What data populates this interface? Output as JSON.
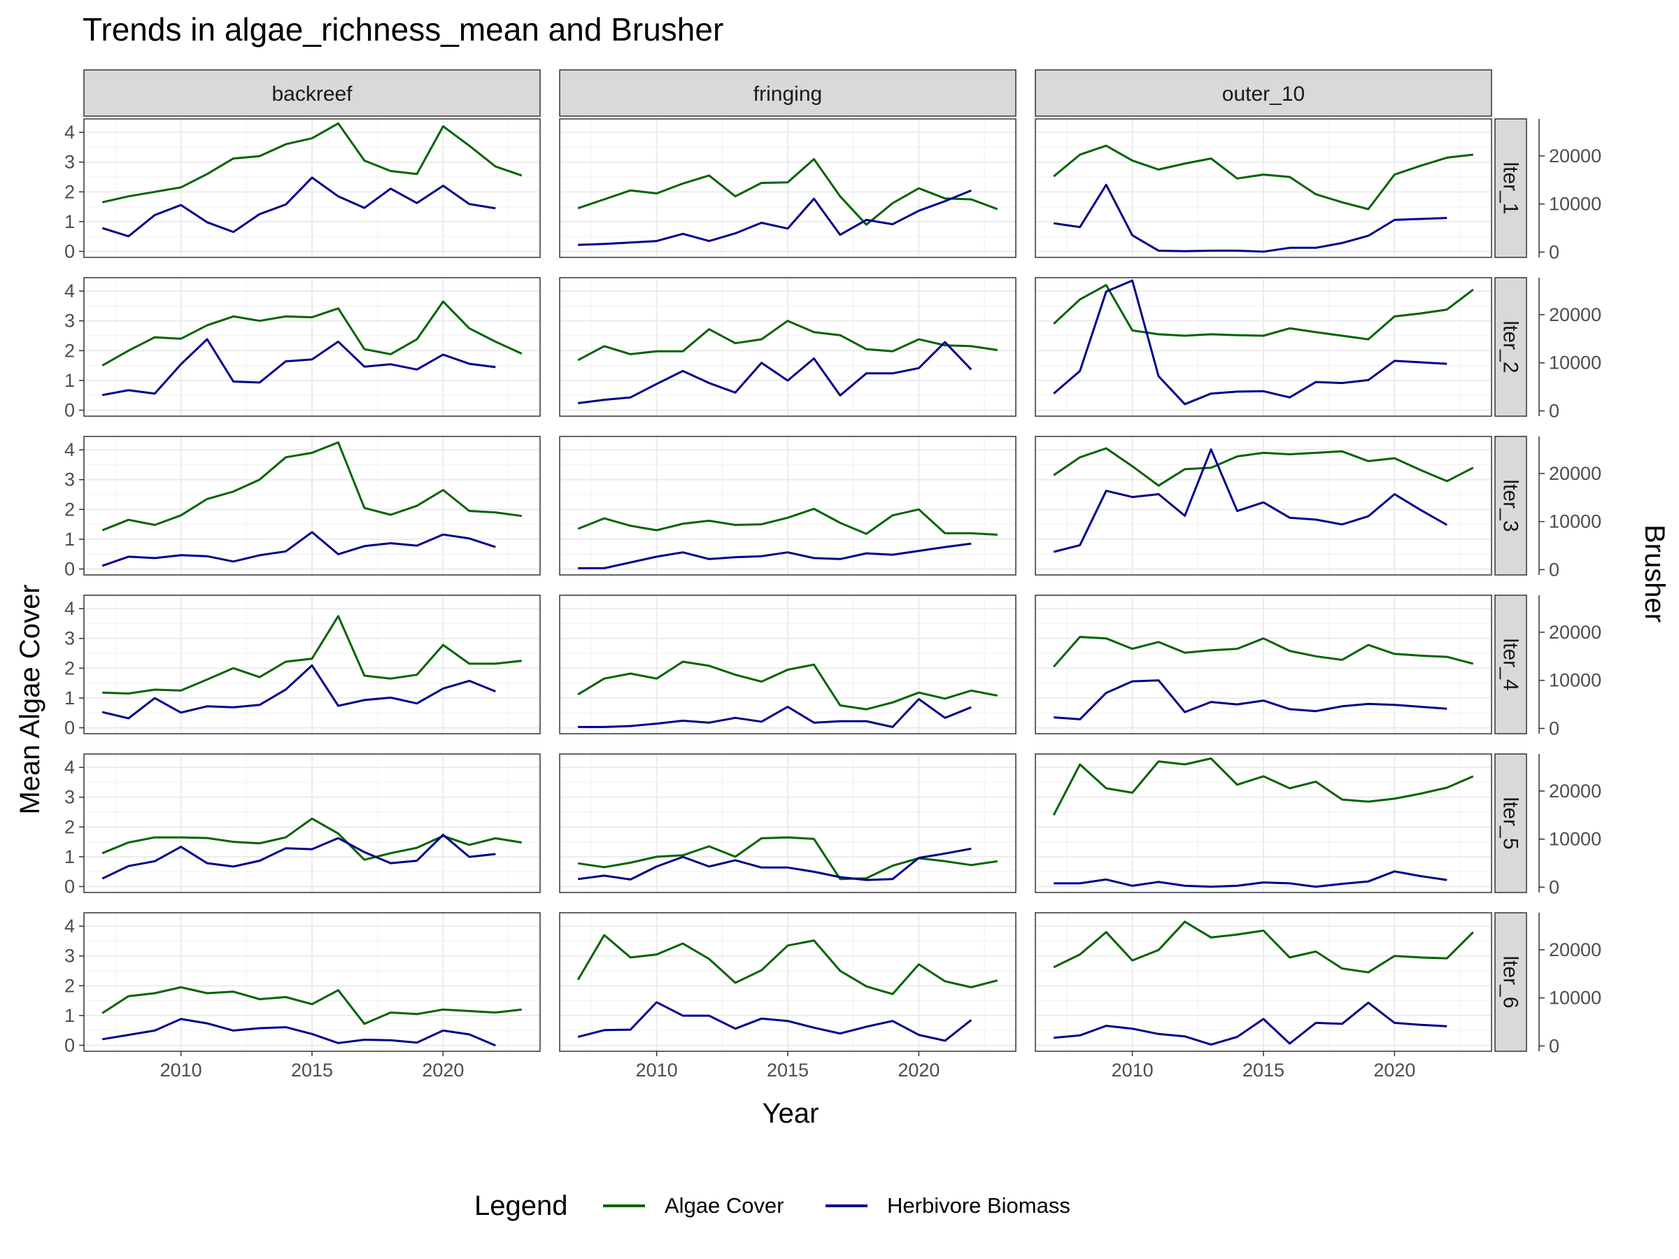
{
  "chart_data": {
    "type": "line",
    "title": "Trends in algae_richness_mean and Brusher",
    "xlabel": "Year",
    "ylabel": "Mean Algae Cover",
    "y2label": "Brusher",
    "x_ticks": [
      2010,
      2015,
      2020
    ],
    "y_ticks": [
      0,
      1,
      2,
      3,
      4
    ],
    "y2_ticks": [
      0,
      10000,
      20000
    ],
    "y2_tick_labels": [
      "0",
      "10000",
      "20000"
    ],
    "xlim": [
      2006.3,
      2023.7
    ],
    "ylim": [
      -0.2,
      4.45
    ],
    "y2lim": [
      -1100,
      27700
    ],
    "grid": true,
    "legend": {
      "title": "Legend",
      "position": "bottom",
      "entries": [
        {
          "label": "Algae Cover",
          "color": "#006400"
        },
        {
          "label": "Herbivore Biomass",
          "color": "#00008b"
        }
      ]
    },
    "col_facets": [
      "backreef",
      "fringing",
      "outer_10"
    ],
    "row_facets": [
      "lter_1",
      "lter_2",
      "lter_3",
      "lter_4",
      "lter_5",
      "lter_6"
    ],
    "algae_years": [
      2007,
      2008,
      2009,
      2010,
      2011,
      2012,
      2013,
      2014,
      2015,
      2016,
      2017,
      2018,
      2019,
      2020,
      2021,
      2022,
      2023
    ],
    "herbivore_years": [
      2007,
      2008,
      2009,
      2010,
      2011,
      2012,
      2013,
      2014,
      2015,
      2016,
      2017,
      2018,
      2019,
      2020,
      2021,
      2022
    ],
    "panels": [
      [
        {
          "algae": [
            1.65,
            1.85,
            2.0,
            2.15,
            2.6,
            3.12,
            3.2,
            3.6,
            3.8,
            4.3,
            3.05,
            2.7,
            2.6,
            4.2,
            3.55,
            2.85,
            2.55
          ],
          "herbivore": [
            5000,
            3300,
            7700,
            9800,
            6200,
            4200,
            7900,
            9900,
            15500,
            11600,
            9200,
            13200,
            10200,
            13800,
            10000,
            9100
          ]
        },
        {
          "algae": [
            1.5,
            2.0,
            2.45,
            2.4,
            2.85,
            3.15,
            3.0,
            3.15,
            3.12,
            3.42,
            2.05,
            1.88,
            2.38,
            3.65,
            2.75,
            2.3,
            1.9
          ],
          "herbivore": [
            3300,
            4300,
            3600,
            9700,
            14900,
            6100,
            5900,
            10300,
            10700,
            14400,
            9200,
            9700,
            8600,
            11700,
            9800,
            9100
          ]
        },
        {
          "algae": [
            1.3,
            1.65,
            1.48,
            1.8,
            2.35,
            2.6,
            3.0,
            3.75,
            3.9,
            4.25,
            2.05,
            1.82,
            2.12,
            2.65,
            1.95,
            1.9,
            1.78
          ],
          "herbivore": [
            800,
            2700,
            2400,
            3000,
            2800,
            1700,
            3000,
            3800,
            7800,
            3200,
            4900,
            5500,
            5000,
            7300,
            6500,
            4700
          ]
        },
        {
          "algae": [
            1.18,
            1.15,
            1.28,
            1.25,
            1.62,
            2.0,
            1.7,
            2.22,
            2.32,
            3.75,
            1.75,
            1.65,
            1.78,
            2.78,
            2.15,
            2.15,
            2.25
          ],
          "herbivore": [
            3400,
            2100,
            6300,
            3300,
            4600,
            4400,
            4900,
            8100,
            13100,
            4700,
            5900,
            6400,
            5200,
            8300,
            9900,
            7700
          ]
        },
        {
          "algae": [
            1.12,
            1.48,
            1.65,
            1.65,
            1.63,
            1.5,
            1.45,
            1.65,
            2.28,
            1.78,
            0.9,
            1.12,
            1.3,
            1.7,
            1.4,
            1.62,
            1.48
          ],
          "herbivore": [
            1800,
            4400,
            5400,
            8400,
            5000,
            4300,
            5500,
            8100,
            7900,
            10200,
            7300,
            5000,
            5500,
            10900,
            6300,
            6900
          ]
        },
        {
          "algae": [
            1.08,
            1.65,
            1.75,
            1.95,
            1.75,
            1.8,
            1.55,
            1.62,
            1.38,
            1.85,
            0.72,
            1.1,
            1.05,
            1.2,
            1.15,
            1.1,
            1.2
          ],
          "herbivore": [
            1400,
            2300,
            3200,
            5600,
            4700,
            3200,
            3700,
            3900,
            2500,
            600,
            1300,
            1200,
            700,
            3200,
            2400,
            100
          ]
        }
      ],
      [
        {
          "algae": [
            1.45,
            1.75,
            2.05,
            1.95,
            2.28,
            2.55,
            1.85,
            2.3,
            2.32,
            3.1,
            1.85,
            0.9,
            1.62,
            2.12,
            1.78,
            1.75,
            1.42
          ],
          "herbivore": [
            1500,
            1700,
            2000,
            2300,
            3800,
            2300,
            3900,
            6100,
            4900,
            11100,
            3600,
            6700,
            5800,
            8600,
            10600,
            12800
          ]
        },
        {
          "algae": [
            1.68,
            2.15,
            1.88,
            1.98,
            1.98,
            2.72,
            2.25,
            2.38,
            3.0,
            2.62,
            2.52,
            2.05,
            1.98,
            2.38,
            2.18,
            2.15,
            2.02
          ],
          "herbivore": [
            1600,
            2300,
            2800,
            5600,
            8300,
            5800,
            3800,
            10000,
            6300,
            10900,
            3200,
            7800,
            7800,
            8900,
            14300,
            8600
          ]
        },
        {
          "algae": [
            1.35,
            1.7,
            1.45,
            1.3,
            1.52,
            1.62,
            1.48,
            1.5,
            1.72,
            2.02,
            1.55,
            1.18,
            1.8,
            2.0,
            1.2,
            1.2,
            1.15
          ],
          "herbivore": [
            300,
            300,
            1500,
            2700,
            3600,
            2200,
            2600,
            2800,
            3600,
            2400,
            2200,
            3400,
            3100,
            3900,
            4700,
            5400
          ]
        },
        {
          "algae": [
            1.12,
            1.65,
            1.82,
            1.65,
            2.22,
            2.08,
            1.78,
            1.55,
            1.95,
            2.12,
            0.75,
            0.62,
            0.85,
            1.18,
            0.98,
            1.25,
            1.08
          ],
          "herbivore": [
            300,
            300,
            500,
            1000,
            1600,
            1200,
            2200,
            1400,
            4500,
            1200,
            1500,
            1500,
            300,
            6100,
            2200,
            4400
          ]
        },
        {
          "algae": [
            0.78,
            0.65,
            0.8,
            1.0,
            1.05,
            1.35,
            1.0,
            1.62,
            1.65,
            1.6,
            0.25,
            0.28,
            0.7,
            0.95,
            0.85,
            0.72,
            0.85
          ],
          "herbivore": [
            1700,
            2400,
            1600,
            4300,
            6300,
            4300,
            5600,
            4100,
            4100,
            3200,
            2100,
            1500,
            1700,
            6100,
            7000,
            8000
          ]
        },
        {
          "algae": [
            2.2,
            3.7,
            2.95,
            3.05,
            3.42,
            2.9,
            2.1,
            2.52,
            3.35,
            3.52,
            2.5,
            1.98,
            1.72,
            2.72,
            2.15,
            1.95,
            2.18
          ],
          "herbivore": [
            1900,
            3300,
            3400,
            9100,
            6300,
            6300,
            3600,
            5700,
            5200,
            3800,
            2600,
            4000,
            5200,
            2300,
            1100,
            5400
          ]
        }
      ],
      [
        {
          "algae": [
            2.52,
            3.25,
            3.55,
            3.05,
            2.75,
            2.95,
            3.12,
            2.45,
            2.58,
            2.5,
            1.92,
            1.65,
            1.42,
            2.58,
            2.88,
            3.15,
            3.25
          ],
          "herbivore": [
            6000,
            5200,
            14000,
            3500,
            300,
            200,
            300,
            300,
            100,
            900,
            900,
            1900,
            3400,
            6700,
            6900,
            7100
          ]
        },
        {
          "algae": [
            2.9,
            3.72,
            4.2,
            2.68,
            2.55,
            2.5,
            2.55,
            2.52,
            2.5,
            2.75,
            2.62,
            2.5,
            2.38,
            3.15,
            3.25,
            3.38,
            4.05
          ],
          "herbivore": [
            3600,
            8300,
            24800,
            27100,
            7200,
            1400,
            3600,
            4000,
            4100,
            2800,
            6000,
            5800,
            6400,
            10400,
            10100,
            9800
          ]
        },
        {
          "algae": [
            3.15,
            3.75,
            4.05,
            3.45,
            2.8,
            3.35,
            3.4,
            3.78,
            3.9,
            3.85,
            3.9,
            3.95,
            3.62,
            3.72,
            3.32,
            2.95,
            3.4
          ],
          "herbivore": [
            3700,
            5100,
            16400,
            15100,
            15700,
            11200,
            25000,
            12200,
            14000,
            10800,
            10400,
            9400,
            11100,
            15700,
            12400,
            9300
          ]
        },
        {
          "algae": [
            2.05,
            3.05,
            3.0,
            2.65,
            2.88,
            2.52,
            2.6,
            2.65,
            3.0,
            2.58,
            2.4,
            2.28,
            2.78,
            2.48,
            2.42,
            2.38,
            2.15
          ],
          "herbivore": [
            2300,
            1900,
            7400,
            9800,
            10000,
            3400,
            5500,
            5000,
            5800,
            4000,
            3600,
            4600,
            5100,
            4900,
            4500,
            4100
          ]
        },
        {
          "algae": [
            2.4,
            4.1,
            3.3,
            3.15,
            4.2,
            4.1,
            4.3,
            3.42,
            3.7,
            3.3,
            3.52,
            2.92,
            2.85,
            2.95,
            3.12,
            3.32,
            3.7
          ],
          "herbivore": [
            800,
            800,
            1600,
            300,
            1100,
            300,
            100,
            300,
            1000,
            800,
            100,
            700,
            1200,
            3300,
            2300,
            1500
          ]
        },
        {
          "algae": [
            2.62,
            3.05,
            3.8,
            2.85,
            3.2,
            4.15,
            3.62,
            3.72,
            3.85,
            2.95,
            3.15,
            2.58,
            2.45,
            3.0,
            2.95,
            2.92,
            3.8
          ],
          "herbivore": [
            1700,
            2200,
            4200,
            3600,
            2500,
            2000,
            300,
            1900,
            5600,
            500,
            4800,
            4600,
            9000,
            4800,
            4400,
            4100
          ]
        }
      ]
    ]
  }
}
